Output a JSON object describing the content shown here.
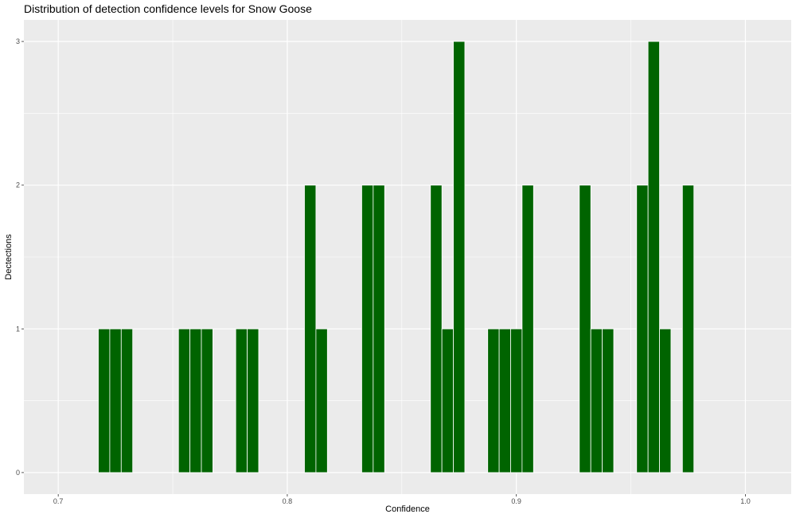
{
  "chart_data": {
    "type": "bar",
    "title": "Distribution of detection confidence levels for Snow Goose",
    "xlabel": "Confidence",
    "ylabel": "Dectections",
    "xlim": [
      0.685,
      1.02
    ],
    "ylim": [
      -0.15,
      3.15
    ],
    "binwidth": 0.005,
    "x_ticks": [
      0.7,
      0.8,
      0.9,
      1.0
    ],
    "x_tick_labels": [
      "0.7",
      "0.8",
      "0.9",
      "1.0"
    ],
    "y_ticks": [
      0,
      1,
      2,
      3
    ],
    "y_tick_labels": [
      "0",
      "1",
      "2",
      "3"
    ],
    "x": [
      0.72,
      0.725,
      0.73,
      0.755,
      0.76,
      0.765,
      0.78,
      0.785,
      0.81,
      0.815,
      0.835,
      0.84,
      0.865,
      0.87,
      0.875,
      0.89,
      0.895,
      0.9,
      0.905,
      0.93,
      0.935,
      0.94,
      0.955,
      0.96,
      0.965,
      0.975
    ],
    "values": [
      1,
      1,
      1,
      1,
      1,
      1,
      1,
      1,
      2,
      1,
      2,
      2,
      2,
      1,
      3,
      1,
      1,
      1,
      2,
      2,
      1,
      1,
      2,
      3,
      1,
      2
    ],
    "bar_color": "#006400",
    "panel_color": "#ebebeb",
    "grid_color": "#ffffff",
    "grid": true,
    "legend": "none"
  }
}
